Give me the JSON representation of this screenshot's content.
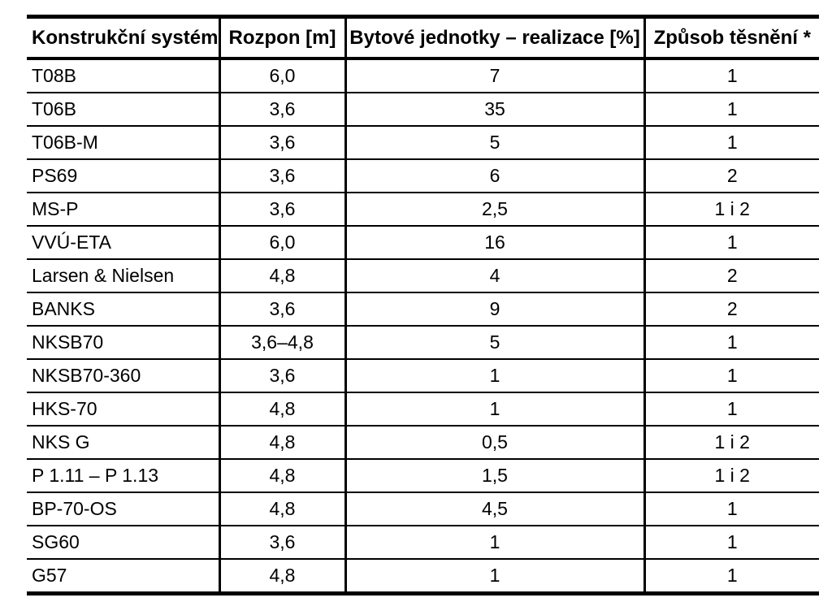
{
  "table": {
    "columns": [
      {
        "label": "Konstrukční systém"
      },
      {
        "label": "Rozpon [m]"
      },
      {
        "label": "Bytové jednotky – realizace [%]"
      },
      {
        "label": "Způsob těsnění *"
      }
    ],
    "rows": [
      [
        "T08B",
        "6,0",
        "7",
        "1"
      ],
      [
        "T06B",
        "3,6",
        "35",
        "1"
      ],
      [
        "T06B-M",
        "3,6",
        "5",
        "1"
      ],
      [
        "PS69",
        "3,6",
        "6",
        "2"
      ],
      [
        "MS-P",
        "3,6",
        "2,5",
        "1 i 2"
      ],
      [
        "VVÚ-ETA",
        "6,0",
        "16",
        "1"
      ],
      [
        "Larsen & Nielsen",
        "4,8",
        "4",
        "2"
      ],
      [
        "BANKS",
        "3,6",
        "9",
        "2"
      ],
      [
        "NKSB70",
        "3,6–4,8",
        "5",
        "1"
      ],
      [
        "NKSB70-360",
        "3,6",
        "1",
        "1"
      ],
      [
        "HKS-70",
        "4,8",
        "1",
        "1"
      ],
      [
        "NKS G",
        "4,8",
        "0,5",
        "1 i 2"
      ],
      [
        "P 1.11 – P 1.13",
        "4,8",
        "1,5",
        "1 i 2"
      ],
      [
        "BP-70-OS",
        "4,8",
        "4,5",
        "1"
      ],
      [
        "SG60",
        "3,6",
        "1",
        "1"
      ],
      [
        "G57",
        "4,8",
        "1",
        "1"
      ]
    ]
  },
  "colors": {
    "border": "#000000",
    "text": "#000000",
    "background": "#ffffff"
  }
}
